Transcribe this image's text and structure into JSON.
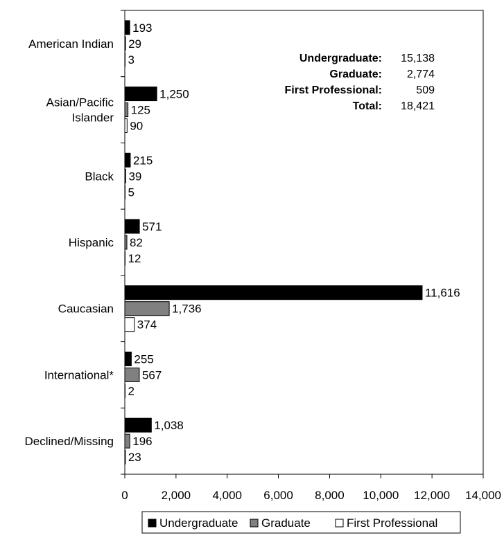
{
  "chart_data": {
    "type": "bar",
    "orientation": "horizontal",
    "categories": [
      [
        "American Indian"
      ],
      [
        "Asian/Pacific",
        "Islander"
      ],
      [
        "Black"
      ],
      [
        "Hispanic"
      ],
      [
        "Caucasian"
      ],
      [
        "International*"
      ],
      [
        "Declined/Missing"
      ]
    ],
    "series": [
      {
        "name": "Undergraduate",
        "color": "#000000",
        "values": [
          193,
          1250,
          215,
          571,
          11616,
          255,
          1038
        ],
        "labels": [
          "193",
          "1,250",
          "215",
          "571",
          "11,616",
          "255",
          "1,038"
        ]
      },
      {
        "name": "Graduate",
        "color": "#808080",
        "values": [
          29,
          125,
          39,
          82,
          1736,
          567,
          196
        ],
        "labels": [
          "29",
          "125",
          "39",
          "82",
          "1,736",
          "567",
          "196"
        ]
      },
      {
        "name": "First Professional",
        "color": "#ffffff",
        "values": [
          3,
          90,
          5,
          12,
          374,
          2,
          23
        ],
        "labels": [
          "3",
          "90",
          "5",
          "12",
          "374",
          "2",
          "23"
        ]
      }
    ],
    "xlim": [
      0,
      14000
    ],
    "xticks": [
      0,
      2000,
      4000,
      6000,
      8000,
      10000,
      12000,
      14000
    ],
    "xtick_labels": [
      "0",
      "2,000",
      "4,000",
      "6,000",
      "8,000",
      "10,000",
      "12,000",
      "14,000"
    ],
    "grid": false,
    "legend_position": "bottom",
    "summary": [
      {
        "label": "Undergraduate:",
        "value": "15,138"
      },
      {
        "label": "Graduate:",
        "value": "2,774"
      },
      {
        "label": "First Professional:",
        "value": "509"
      },
      {
        "label": "Total:",
        "value": "18,421"
      }
    ]
  }
}
